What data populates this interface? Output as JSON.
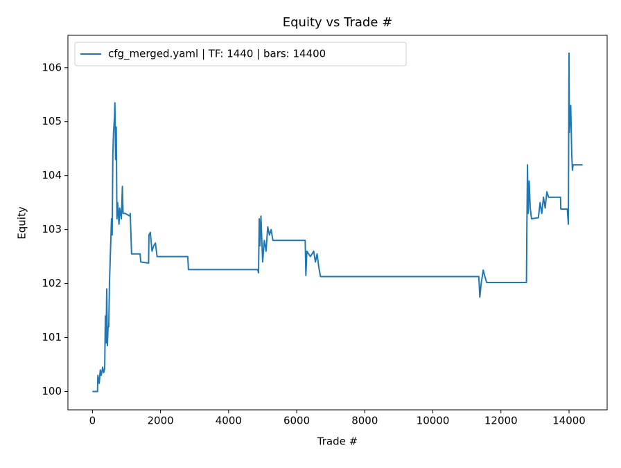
{
  "chart_data": {
    "type": "line",
    "title": "Equity vs Trade #",
    "xlabel": "Trade #",
    "ylabel": "Equity",
    "x": [
      0,
      150,
      160,
      200,
      230,
      260,
      300,
      330,
      360,
      380,
      400,
      420,
      440,
      460,
      480,
      500,
      540,
      560,
      580,
      600,
      620,
      650,
      660,
      680,
      700,
      720,
      740,
      780,
      800,
      850,
      880,
      900,
      960,
      1100,
      1110,
      1150,
      1400,
      1420,
      1650,
      1660,
      1700,
      1750,
      1800,
      1850,
      1900,
      2800,
      2820,
      4850,
      4880,
      4900,
      4920,
      4950,
      5000,
      5050,
      5100,
      5150,
      5200,
      5250,
      5300,
      6250,
      6270,
      6300,
      6400,
      6500,
      6550,
      6600,
      6650,
      6700,
      11350,
      11380,
      11420,
      11480,
      11520,
      11580,
      12750,
      12760,
      12780,
      12800,
      12830,
      12860,
      12900,
      13100,
      13150,
      13200,
      13250,
      13300,
      13350,
      13400,
      13750,
      13760,
      13950,
      13980,
      14000,
      14010,
      14050,
      14080,
      14100,
      14120,
      14400
    ],
    "series": [
      {
        "name": "cfg_merged.yaml | TF: 1440 | bars: 14400",
        "color": "#1f77b4",
        "values": [
          100.0,
          100.0,
          100.3,
          100.15,
          100.4,
          100.3,
          100.45,
          100.35,
          100.42,
          101.4,
          100.9,
          101.9,
          100.85,
          101.2,
          101.2,
          102.0,
          102.8,
          103.2,
          102.9,
          104.4,
          104.8,
          105.1,
          105.35,
          104.3,
          104.9,
          103.2,
          103.5,
          103.1,
          103.4,
          103.2,
          103.8,
          103.3,
          103.3,
          103.25,
          103.3,
          102.55,
          102.55,
          102.4,
          102.38,
          102.9,
          102.95,
          102.6,
          102.7,
          102.75,
          102.5,
          102.5,
          102.26,
          102.26,
          102.2,
          103.2,
          102.7,
          103.25,
          102.4,
          102.8,
          102.6,
          103.05,
          102.9,
          103.0,
          102.8,
          102.8,
          102.15,
          102.6,
          102.5,
          102.6,
          102.4,
          102.55,
          102.3,
          102.13,
          102.13,
          101.75,
          102.0,
          102.25,
          102.15,
          102.02,
          102.02,
          102.9,
          104.2,
          103.3,
          103.9,
          103.4,
          103.2,
          103.22,
          103.5,
          103.3,
          103.6,
          103.4,
          103.7,
          103.6,
          103.6,
          103.38,
          103.38,
          103.1,
          106.27,
          104.8,
          105.3,
          104.4,
          104.1,
          104.2,
          104.2
        ]
      }
    ],
    "xlim": [
      -720,
      15120
    ],
    "ylim": [
      99.66,
      106.6
    ],
    "xticks": [
      0,
      2000,
      4000,
      6000,
      8000,
      10000,
      12000,
      14000
    ],
    "yticks": [
      100,
      101,
      102,
      103,
      104,
      105,
      106
    ],
    "legend": "upper left"
  }
}
